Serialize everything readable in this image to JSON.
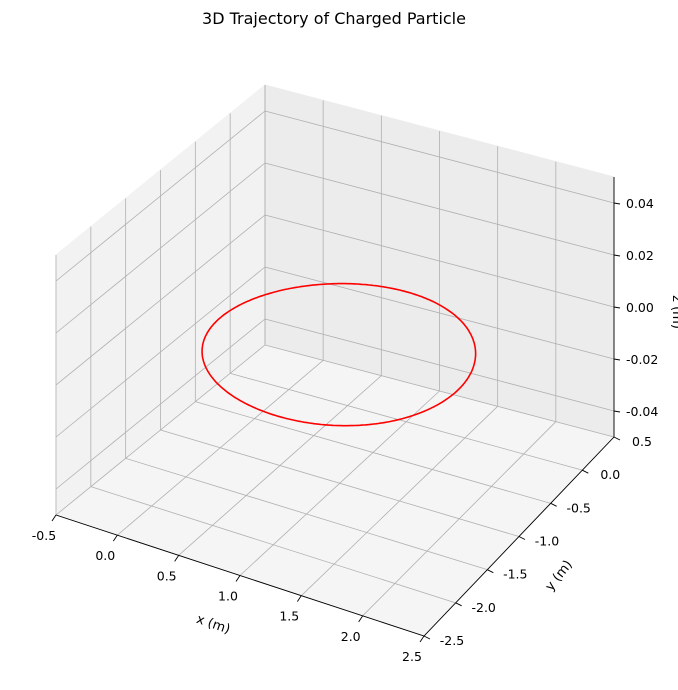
{
  "chart_data": {
    "type": "line",
    "projection": "3d",
    "title": "3D Trajectory of Charged Particle",
    "xlabel": "x (m)",
    "ylabel": "y (m)",
    "zlabel": "z (m)",
    "xlim": [
      -0.5,
      2.5
    ],
    "ylim": [
      -2.5,
      0.5
    ],
    "zlim": [
      -0.05,
      0.05
    ],
    "x_ticks": [
      "-0.5",
      "0.0",
      "0.5",
      "1.0",
      "1.5",
      "2.0",
      "2.5"
    ],
    "y_ticks": [
      "-2.5",
      "-2.0",
      "-1.5",
      "-1.0",
      "-0.5",
      "0.0",
      "0.5"
    ],
    "z_ticks": [
      "-0.04",
      "-0.02",
      "0.00",
      "0.02",
      "0.04"
    ],
    "grid": true,
    "series": [
      {
        "color": "#ff0000",
        "shape": "circle",
        "center_x": 1.0,
        "center_y": -1.0,
        "radius": 1.0,
        "z": 0.0
      }
    ]
  }
}
